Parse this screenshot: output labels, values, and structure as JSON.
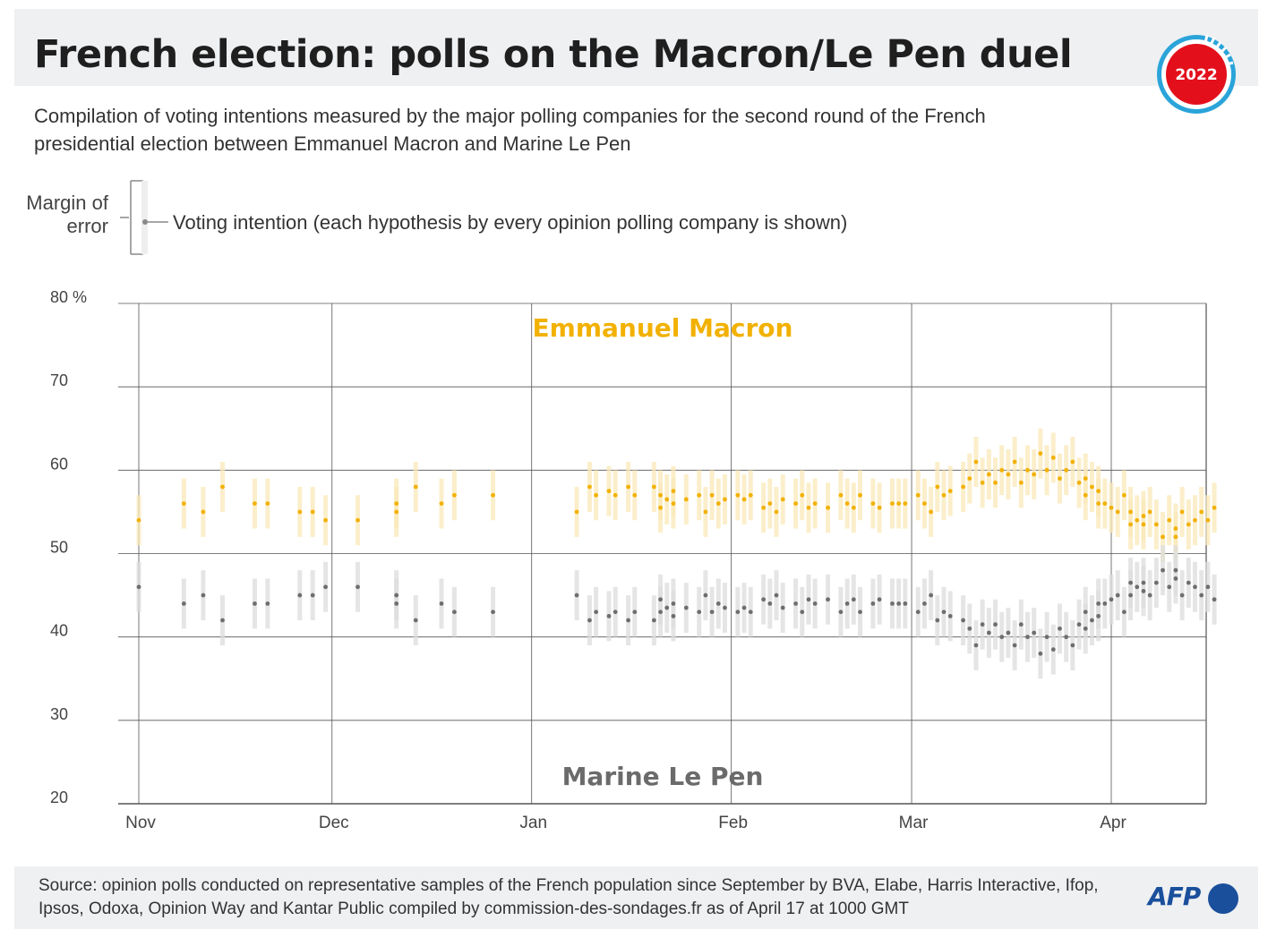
{
  "header": {
    "title": "French election: polls on the Macron/Le Pen duel",
    "subtitle": "Compilation of voting intentions measured by the major polling companies for the second round of the French presidential election between Emmanuel Macron and Marine Le Pen",
    "badge_year": "2022"
  },
  "legend": {
    "margin_label": "Margin of error",
    "point_label": "Voting intention (each hypothesis by every opinion polling company is shown)"
  },
  "footer": {
    "source": "Source: opinion polls conducted on representative samples of the French population since September by BVA, Elabe, Harris Interactive, Ifop, Ipsos, Odoxa, Opinion Way and Kantar Public compiled by commission-des-sondages.fr as of April 17 at 1000 GMT",
    "logo": "AFP"
  },
  "colors": {
    "macron": "#f2b100",
    "macron_band": "#f9e8b8",
    "lepen": "#6e6e6e",
    "lepen_band": "#dcdcdc",
    "grid": "#555555",
    "badge_red": "#e3101c",
    "badge_blue": "#2aa4d9"
  },
  "chart_data": {
    "type": "scatter",
    "x_axis": {
      "type": "date",
      "range": [
        "2021-11-01",
        "2022-04-17"
      ],
      "ticks": [
        "Nov",
        "Dec",
        "Jan",
        "Feb",
        "Mar",
        "Apr"
      ]
    },
    "y_axis": {
      "range": [
        20,
        80
      ],
      "ticks": [
        "20",
        "30",
        "40",
        "50",
        "60",
        "70",
        "80 %"
      ]
    },
    "grid": true,
    "margin_of_error": 3,
    "series": [
      {
        "name": "Emmanuel Macron",
        "color": "#f2b100",
        "points": [
          [
            "2021-11-01",
            54
          ],
          [
            "2021-11-08",
            56
          ],
          [
            "2021-11-11",
            55
          ],
          [
            "2021-11-14",
            58
          ],
          [
            "2021-11-19",
            56
          ],
          [
            "2021-11-21",
            56
          ],
          [
            "2021-11-26",
            55
          ],
          [
            "2021-11-28",
            55
          ],
          [
            "2021-11-30",
            54
          ],
          [
            "2021-12-05",
            54
          ],
          [
            "2021-12-11",
            56
          ],
          [
            "2021-12-11",
            55
          ],
          [
            "2021-12-14",
            58
          ],
          [
            "2021-12-18",
            56
          ],
          [
            "2021-12-20",
            57
          ],
          [
            "2021-12-26",
            57
          ],
          [
            "2022-01-08",
            55
          ],
          [
            "2022-01-10",
            58
          ],
          [
            "2022-01-11",
            57
          ],
          [
            "2022-01-13",
            57.5
          ],
          [
            "2022-01-14",
            57
          ],
          [
            "2022-01-16",
            58
          ],
          [
            "2022-01-17",
            57
          ],
          [
            "2022-01-20",
            58
          ],
          [
            "2022-01-21",
            57
          ],
          [
            "2022-01-21",
            55.5
          ],
          [
            "2022-01-22",
            56.5
          ],
          [
            "2022-01-23",
            57.5
          ],
          [
            "2022-01-23",
            56
          ],
          [
            "2022-01-25",
            56.5
          ],
          [
            "2022-01-27",
            57
          ],
          [
            "2022-01-28",
            55
          ],
          [
            "2022-01-29",
            57
          ],
          [
            "2022-01-30",
            56
          ],
          [
            "2022-01-31",
            56.5
          ],
          [
            "2022-02-02",
            57
          ],
          [
            "2022-02-03",
            56.5
          ],
          [
            "2022-02-04",
            57
          ],
          [
            "2022-02-06",
            55.5
          ],
          [
            "2022-02-07",
            56
          ],
          [
            "2022-02-08",
            55
          ],
          [
            "2022-02-09",
            56.5
          ],
          [
            "2022-02-11",
            56
          ],
          [
            "2022-02-12",
            57
          ],
          [
            "2022-02-13",
            55.5
          ],
          [
            "2022-02-14",
            56
          ],
          [
            "2022-02-16",
            55.5
          ],
          [
            "2022-02-18",
            57
          ],
          [
            "2022-02-19",
            56
          ],
          [
            "2022-02-20",
            55.5
          ],
          [
            "2022-02-21",
            57
          ],
          [
            "2022-02-23",
            56
          ],
          [
            "2022-02-24",
            55.5
          ],
          [
            "2022-02-26",
            56
          ],
          [
            "2022-02-27",
            56
          ],
          [
            "2022-02-28",
            56
          ],
          [
            "2022-03-02",
            57
          ],
          [
            "2022-03-03",
            56
          ],
          [
            "2022-03-04",
            55
          ],
          [
            "2022-03-05",
            58
          ],
          [
            "2022-03-06",
            57
          ],
          [
            "2022-03-07",
            57.5
          ],
          [
            "2022-03-09",
            58
          ],
          [
            "2022-03-10",
            59
          ],
          [
            "2022-03-11",
            61
          ],
          [
            "2022-03-12",
            58.5
          ],
          [
            "2022-03-13",
            59.5
          ],
          [
            "2022-03-14",
            58.5
          ],
          [
            "2022-03-15",
            60
          ],
          [
            "2022-03-16",
            59.5
          ],
          [
            "2022-03-17",
            61
          ],
          [
            "2022-03-18",
            58.5
          ],
          [
            "2022-03-19",
            60
          ],
          [
            "2022-03-20",
            59.5
          ],
          [
            "2022-03-21",
            62
          ],
          [
            "2022-03-22",
            60
          ],
          [
            "2022-03-23",
            61.5
          ],
          [
            "2022-03-24",
            59
          ],
          [
            "2022-03-25",
            60
          ],
          [
            "2022-03-26",
            61
          ],
          [
            "2022-03-27",
            58.5
          ],
          [
            "2022-03-28",
            59
          ],
          [
            "2022-03-28",
            57
          ],
          [
            "2022-03-29",
            58
          ],
          [
            "2022-03-30",
            56
          ],
          [
            "2022-03-30",
            57.5
          ],
          [
            "2022-03-31",
            56
          ],
          [
            "2022-04-01",
            55.5
          ],
          [
            "2022-04-02",
            55
          ],
          [
            "2022-04-03",
            57
          ],
          [
            "2022-04-04",
            55
          ],
          [
            "2022-04-04",
            53.5
          ],
          [
            "2022-04-05",
            54
          ],
          [
            "2022-04-06",
            54.5
          ],
          [
            "2022-04-06",
            53.5
          ],
          [
            "2022-04-07",
            55
          ],
          [
            "2022-04-08",
            53.5
          ],
          [
            "2022-04-09",
            52
          ],
          [
            "2022-04-10",
            54
          ],
          [
            "2022-04-11",
            53
          ],
          [
            "2022-04-11",
            52
          ],
          [
            "2022-04-12",
            55
          ],
          [
            "2022-04-13",
            53.5
          ],
          [
            "2022-04-14",
            54
          ],
          [
            "2022-04-15",
            55
          ],
          [
            "2022-04-16",
            54
          ],
          [
            "2022-04-17",
            55.5
          ]
        ]
      },
      {
        "name": "Marine Le Pen",
        "color": "#6e6e6e",
        "points": [
          [
            "2021-11-01",
            46
          ],
          [
            "2021-11-08",
            44
          ],
          [
            "2021-11-11",
            45
          ],
          [
            "2021-11-14",
            42
          ],
          [
            "2021-11-19",
            44
          ],
          [
            "2021-11-21",
            44
          ],
          [
            "2021-11-26",
            45
          ],
          [
            "2021-11-28",
            45
          ],
          [
            "2021-11-30",
            46
          ],
          [
            "2021-12-05",
            46
          ],
          [
            "2021-12-11",
            44
          ],
          [
            "2021-12-11",
            45
          ],
          [
            "2021-12-14",
            42
          ],
          [
            "2021-12-18",
            44
          ],
          [
            "2021-12-20",
            43
          ],
          [
            "2021-12-26",
            43
          ],
          [
            "2022-01-08",
            45
          ],
          [
            "2022-01-10",
            42
          ],
          [
            "2022-01-11",
            43
          ],
          [
            "2022-01-13",
            42.5
          ],
          [
            "2022-01-14",
            43
          ],
          [
            "2022-01-16",
            42
          ],
          [
            "2022-01-17",
            43
          ],
          [
            "2022-01-20",
            42
          ],
          [
            "2022-01-21",
            43
          ],
          [
            "2022-01-21",
            44.5
          ],
          [
            "2022-01-22",
            43.5
          ],
          [
            "2022-01-23",
            42.5
          ],
          [
            "2022-01-23",
            44
          ],
          [
            "2022-01-25",
            43.5
          ],
          [
            "2022-01-27",
            43
          ],
          [
            "2022-01-28",
            45
          ],
          [
            "2022-01-29",
            43
          ],
          [
            "2022-01-30",
            44
          ],
          [
            "2022-01-31",
            43.5
          ],
          [
            "2022-02-02",
            43
          ],
          [
            "2022-02-03",
            43.5
          ],
          [
            "2022-02-04",
            43
          ],
          [
            "2022-02-06",
            44.5
          ],
          [
            "2022-02-07",
            44
          ],
          [
            "2022-02-08",
            45
          ],
          [
            "2022-02-09",
            43.5
          ],
          [
            "2022-02-11",
            44
          ],
          [
            "2022-02-12",
            43
          ],
          [
            "2022-02-13",
            44.5
          ],
          [
            "2022-02-14",
            44
          ],
          [
            "2022-02-16",
            44.5
          ],
          [
            "2022-02-18",
            43
          ],
          [
            "2022-02-19",
            44
          ],
          [
            "2022-02-20",
            44.5
          ],
          [
            "2022-02-21",
            43
          ],
          [
            "2022-02-23",
            44
          ],
          [
            "2022-02-24",
            44.5
          ],
          [
            "2022-02-26",
            44
          ],
          [
            "2022-02-27",
            44
          ],
          [
            "2022-02-28",
            44
          ],
          [
            "2022-03-02",
            43
          ],
          [
            "2022-03-03",
            44
          ],
          [
            "2022-03-04",
            45
          ],
          [
            "2022-03-05",
            42
          ],
          [
            "2022-03-06",
            43
          ],
          [
            "2022-03-07",
            42.5
          ],
          [
            "2022-03-09",
            42
          ],
          [
            "2022-03-10",
            41
          ],
          [
            "2022-03-11",
            39
          ],
          [
            "2022-03-12",
            41.5
          ],
          [
            "2022-03-13",
            40.5
          ],
          [
            "2022-03-14",
            41.5
          ],
          [
            "2022-03-15",
            40
          ],
          [
            "2022-03-16",
            40.5
          ],
          [
            "2022-03-17",
            39
          ],
          [
            "2022-03-18",
            41.5
          ],
          [
            "2022-03-19",
            40
          ],
          [
            "2022-03-20",
            40.5
          ],
          [
            "2022-03-21",
            38
          ],
          [
            "2022-03-22",
            40
          ],
          [
            "2022-03-23",
            38.5
          ],
          [
            "2022-03-24",
            41
          ],
          [
            "2022-03-25",
            40
          ],
          [
            "2022-03-26",
            39
          ],
          [
            "2022-03-27",
            41.5
          ],
          [
            "2022-03-28",
            41
          ],
          [
            "2022-03-28",
            43
          ],
          [
            "2022-03-29",
            42
          ],
          [
            "2022-03-30",
            44
          ],
          [
            "2022-03-30",
            42.5
          ],
          [
            "2022-03-31",
            44
          ],
          [
            "2022-04-01",
            44.5
          ],
          [
            "2022-04-02",
            45
          ],
          [
            "2022-04-03",
            43
          ],
          [
            "2022-04-04",
            45
          ],
          [
            "2022-04-04",
            46.5
          ],
          [
            "2022-04-05",
            46
          ],
          [
            "2022-04-06",
            45.5
          ],
          [
            "2022-04-06",
            46.5
          ],
          [
            "2022-04-07",
            45
          ],
          [
            "2022-04-08",
            46.5
          ],
          [
            "2022-04-09",
            48
          ],
          [
            "2022-04-10",
            46
          ],
          [
            "2022-04-11",
            47
          ],
          [
            "2022-04-11",
            48
          ],
          [
            "2022-04-12",
            45
          ],
          [
            "2022-04-13",
            46.5
          ],
          [
            "2022-04-14",
            46
          ],
          [
            "2022-04-15",
            45
          ],
          [
            "2022-04-16",
            46
          ],
          [
            "2022-04-17",
            44.5
          ]
        ]
      }
    ]
  }
}
